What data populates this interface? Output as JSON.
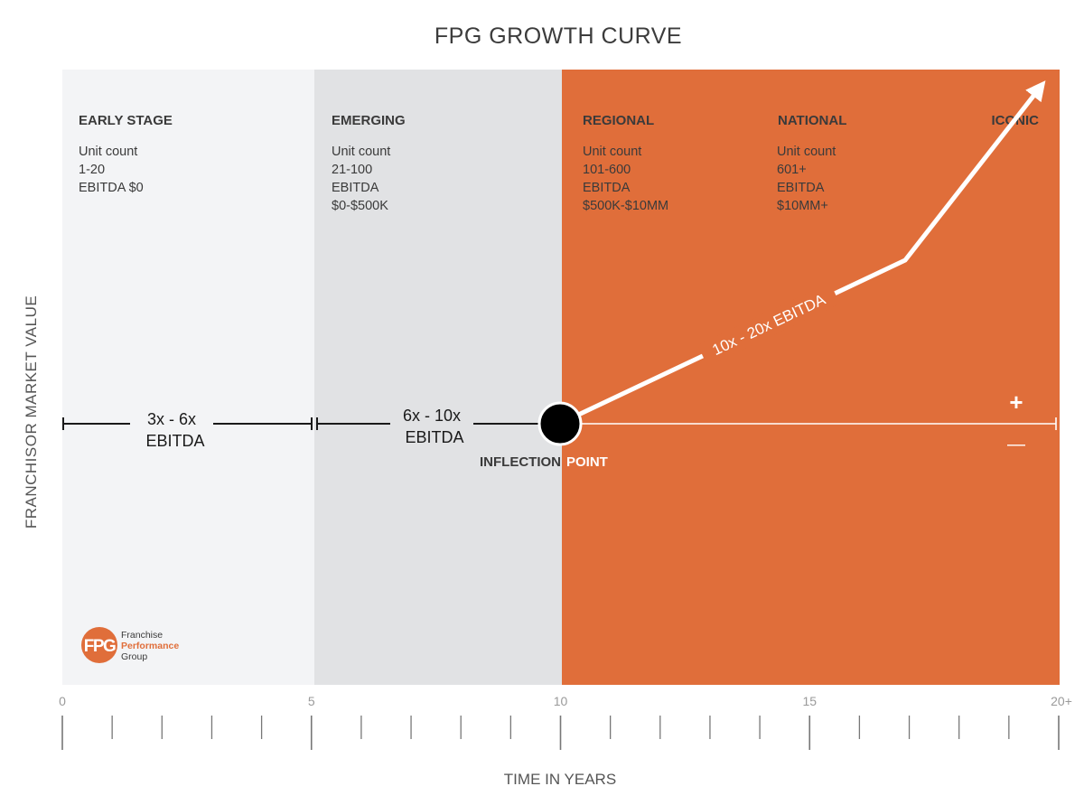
{
  "title": "FPG GROWTH CURVE",
  "y_axis_label": "FRANCHISOR MARKET VALUE",
  "x_axis_label": "TIME IN YEARS",
  "x_axis": {
    "min": 0,
    "max": 20,
    "major_ticks": [
      0,
      5,
      10,
      15,
      20
    ],
    "major_labels": [
      "0",
      "5",
      "10",
      "15",
      "20+"
    ],
    "minor_step": 1
  },
  "stages": [
    {
      "name": "EARLY STAGE",
      "details": [
        "Unit count",
        "1-20",
        "EBITDA $0"
      ],
      "start": 0,
      "end": 5,
      "color": "#f3f4f6"
    },
    {
      "name": "EMERGING",
      "details": [
        "Unit count",
        "21-100",
        "EBITDA",
        "$0-$500K"
      ],
      "start": 5,
      "end": 10,
      "color": "#e1e2e4"
    },
    {
      "name": "REGIONAL",
      "details": [
        "Unit count",
        "101-600",
        "EBITDA",
        "$500K-$10MM"
      ],
      "start": 10,
      "end": 15,
      "color": "#e06e3a"
    },
    {
      "name": "NATIONAL",
      "details": [
        "Unit count",
        "601+",
        "EBITDA",
        "$10MM+"
      ],
      "start": 15,
      "end": 20,
      "color": "#e06e3a"
    },
    {
      "name": "ICONIC",
      "details": []
    }
  ],
  "multiples": [
    {
      "lines": [
        "3x - 6x",
        "EBITDA"
      ]
    },
    {
      "lines": [
        "6x - 10x",
        "EBITDA"
      ]
    }
  ],
  "growth_label": "10x - 20x EBITDA",
  "inflection_label": {
    "part1": "INFLECTION",
    "part2": "POINT"
  },
  "plus_symbol": "+",
  "minus_symbol": "—",
  "logo": {
    "mark": "FPG",
    "lines": [
      "Franchise",
      "Performance",
      "Group"
    ]
  },
  "colors": {
    "orange": "#e06e3a",
    "early": "#f3f4f6",
    "emerging": "#e1e2e4",
    "text_dark": "#3a3a3a",
    "axis_gray": "#9a9a9a"
  }
}
